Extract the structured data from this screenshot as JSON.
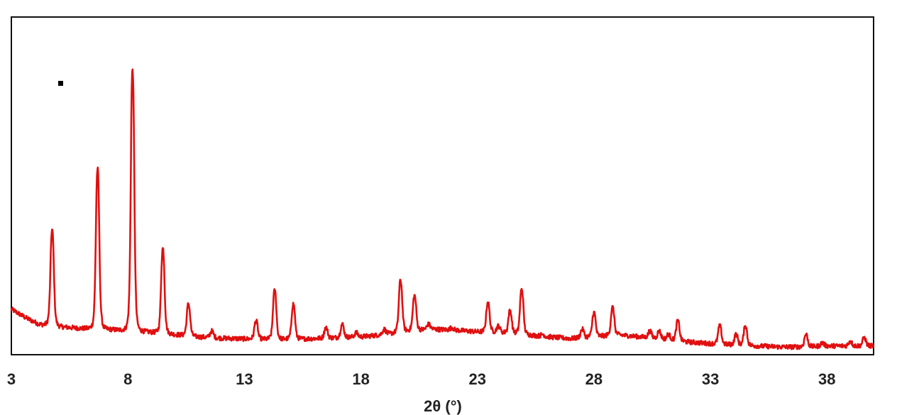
{
  "chart_data": {
    "type": "line",
    "title": "",
    "xlabel": "2θ (°)",
    "ylabel": "",
    "xlim": [
      3,
      40
    ],
    "ylim": [
      0,
      100
    ],
    "xticks": [
      "3",
      "8",
      "13",
      "18",
      "23",
      "28",
      "33",
      "38"
    ],
    "grid": false,
    "legend": "none",
    "marker": "■",
    "series_color": "#e01010",
    "baseline": [
      [
        3.0,
        13.5
      ],
      [
        3.6,
        11.0
      ],
      [
        4.2,
        9.0
      ],
      [
        5.0,
        8.3
      ],
      [
        6.0,
        7.8
      ],
      [
        7.2,
        7.5
      ],
      [
        8.8,
        6.8
      ],
      [
        10.0,
        6.0
      ],
      [
        11.0,
        5.3
      ],
      [
        12.0,
        4.9
      ],
      [
        13.5,
        4.6
      ],
      [
        15.0,
        4.6
      ],
      [
        16.5,
        4.9
      ],
      [
        18.0,
        5.3
      ],
      [
        19.0,
        6.0
      ],
      [
        20.0,
        7.0
      ],
      [
        21.0,
        7.6
      ],
      [
        22.0,
        7.3
      ],
      [
        23.0,
        6.8
      ],
      [
        24.0,
        6.6
      ],
      [
        25.0,
        6.0
      ],
      [
        26.0,
        5.3
      ],
      [
        27.0,
        4.8
      ],
      [
        28.0,
        5.3
      ],
      [
        29.0,
        5.9
      ],
      [
        30.0,
        5.3
      ],
      [
        31.0,
        4.6
      ],
      [
        32.0,
        3.8
      ],
      [
        33.0,
        3.3
      ],
      [
        34.0,
        2.9
      ],
      [
        35.0,
        2.6
      ],
      [
        36.0,
        2.3
      ],
      [
        37.0,
        2.3
      ],
      [
        38.0,
        2.6
      ],
      [
        39.0,
        2.6
      ],
      [
        40.0,
        2.6
      ]
    ],
    "peaks": [
      {
        "x": 4.75,
        "y": 37.0
      },
      {
        "x": 6.7,
        "y": 55.0
      },
      {
        "x": 8.2,
        "y": 84.5
      },
      {
        "x": 9.5,
        "y": 31.5
      },
      {
        "x": 10.6,
        "y": 15.0
      },
      {
        "x": 11.6,
        "y": 7.0
      },
      {
        "x": 13.5,
        "y": 10.0
      },
      {
        "x": 14.3,
        "y": 19.0
      },
      {
        "x": 15.1,
        "y": 15.0
      },
      {
        "x": 16.5,
        "y": 8.0
      },
      {
        "x": 17.2,
        "y": 9.0
      },
      {
        "x": 17.8,
        "y": 6.5
      },
      {
        "x": 19.0,
        "y": 7.5
      },
      {
        "x": 19.7,
        "y": 22.0
      },
      {
        "x": 20.3,
        "y": 17.5
      },
      {
        "x": 20.9,
        "y": 9.0
      },
      {
        "x": 21.9,
        "y": 8.0
      },
      {
        "x": 23.45,
        "y": 15.5
      },
      {
        "x": 23.9,
        "y": 8.5
      },
      {
        "x": 24.4,
        "y": 13.0
      },
      {
        "x": 24.9,
        "y": 19.5
      },
      {
        "x": 25.8,
        "y": 6.0
      },
      {
        "x": 27.5,
        "y": 7.5
      },
      {
        "x": 28.0,
        "y": 12.5
      },
      {
        "x": 28.8,
        "y": 14.0
      },
      {
        "x": 30.4,
        "y": 7.0
      },
      {
        "x": 30.8,
        "y": 7.0
      },
      {
        "x": 31.2,
        "y": 6.0
      },
      {
        "x": 31.6,
        "y": 10.0
      },
      {
        "x": 33.4,
        "y": 8.5
      },
      {
        "x": 34.1,
        "y": 6.0
      },
      {
        "x": 34.5,
        "y": 8.5
      },
      {
        "x": 37.1,
        "y": 6.0
      },
      {
        "x": 37.8,
        "y": 3.5
      },
      {
        "x": 39.0,
        "y": 4.0
      },
      {
        "x": 39.6,
        "y": 5.0
      }
    ]
  }
}
